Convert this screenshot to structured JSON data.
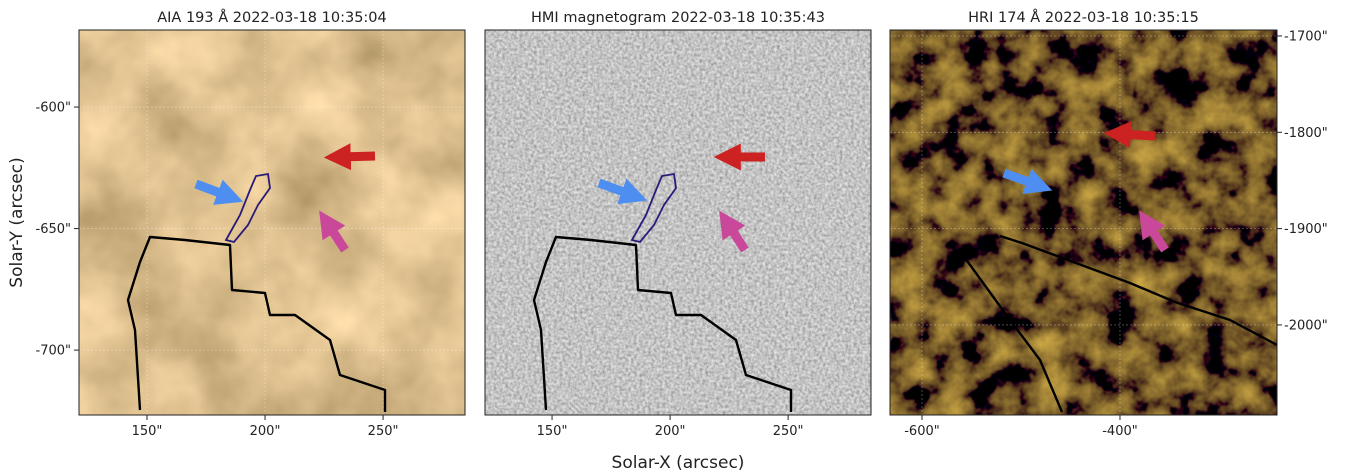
{
  "chart_data": [
    {
      "type": "image",
      "title": "AIA 193 Å 2022-03-18 10:35:04",
      "ylabel": "Solar-Y (arcsec)",
      "xlim": [
        121.2,
        284.7
      ],
      "ylim": [
        -726.7,
        -568.3
      ],
      "xticks": [
        {
          "value": 150,
          "label": "150\""
        },
        {
          "value": 200,
          "label": "200\""
        },
        {
          "value": 250,
          "label": "250\""
        }
      ],
      "yticks": [
        {
          "value": -600,
          "label": "-600\""
        },
        {
          "value": -650,
          "label": "-650\""
        },
        {
          "value": -700,
          "label": "-700\""
        }
      ],
      "ytick_side": "left",
      "grid": true
    },
    {
      "type": "image",
      "title": "HMI magnetogram 2022-03-18 10:35:43",
      "xlabel": "Solar-X (arcsec)",
      "xlim": [
        121.6,
        285.1
      ],
      "ylim": [
        -726.7,
        -568.3
      ],
      "xticks": [
        {
          "value": 150,
          "label": "150\""
        },
        {
          "value": 200,
          "label": "200\""
        },
        {
          "value": 250,
          "label": "250\""
        }
      ],
      "grid": true
    },
    {
      "type": "image",
      "title": "HRI 174 Å 2022-03-18 10:35:15",
      "xlim": [
        -632.3,
        -241.4
      ],
      "ylim": [
        -2093.5,
        -1693.8
      ],
      "xticks": [
        {
          "value": -600,
          "label": "-600\""
        },
        {
          "value": -400,
          "label": "-400\""
        }
      ],
      "yticks": [
        {
          "value": -1700,
          "label": "-1700\""
        },
        {
          "value": -1800,
          "label": "-1800\""
        },
        {
          "value": -1900,
          "label": "-1900\""
        },
        {
          "value": -2000,
          "label": "-2000\""
        }
      ],
      "ytick_side": "right",
      "grid": true
    }
  ]
}
